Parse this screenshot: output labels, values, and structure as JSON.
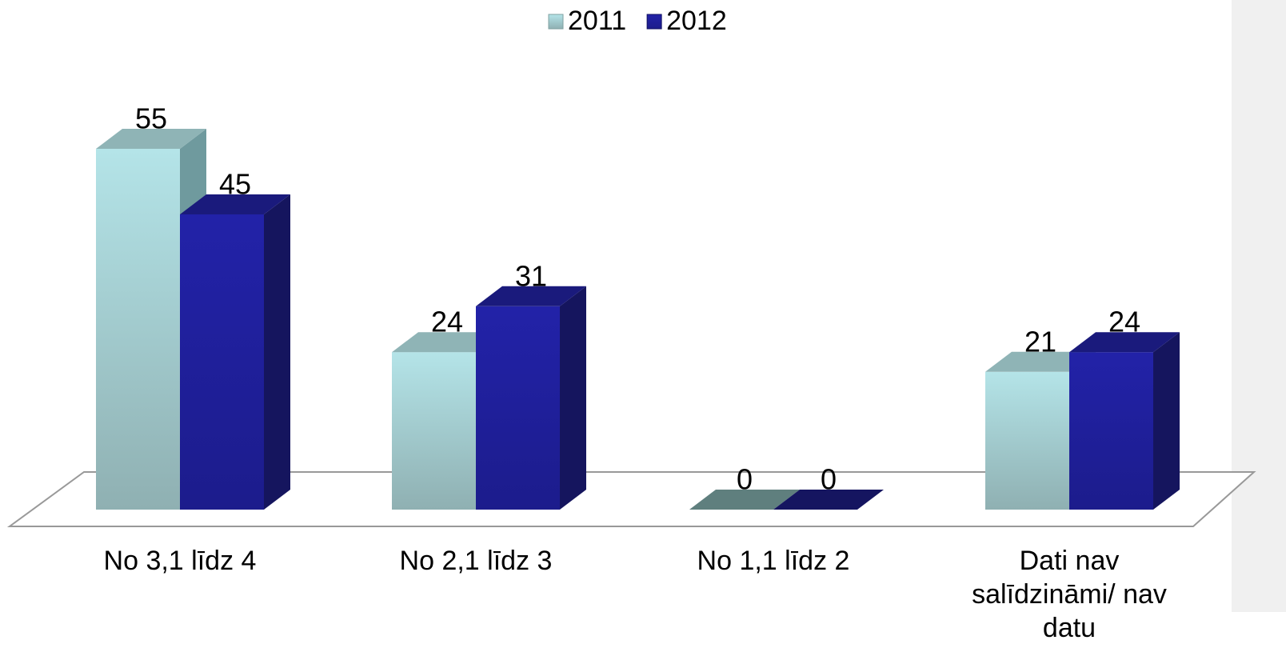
{
  "chart_data": {
    "type": "bar",
    "categories": [
      "No 3,1 līdz 4",
      "No 2,1 līdz 3",
      "No 1,1 līdz 2",
      "Dati nav salīdzināmi/ nav datu"
    ],
    "series": [
      {
        "name": "2011",
        "color": "#b0e0e6",
        "values": [
          55,
          24,
          0,
          21
        ]
      },
      {
        "name": "2012",
        "color": "#2020a0",
        "values": [
          45,
          31,
          0,
          24
        ]
      }
    ],
    "legend": "top"
  }
}
